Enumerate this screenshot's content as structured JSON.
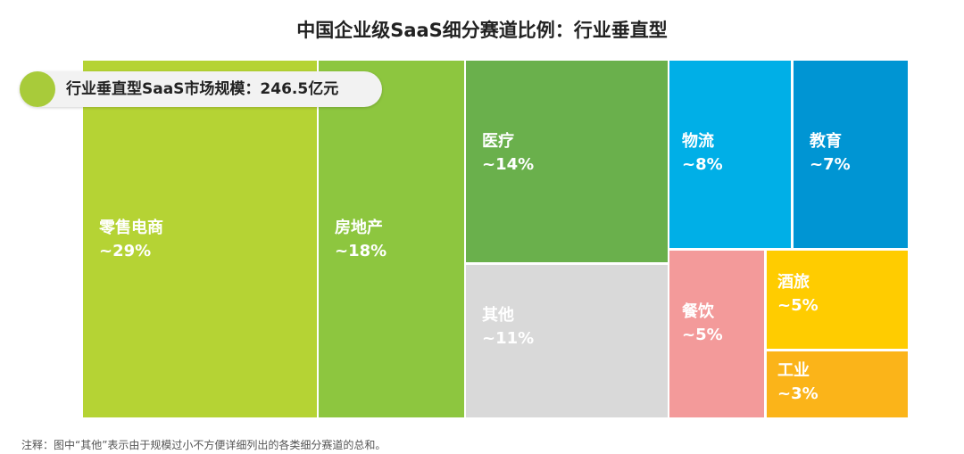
{
  "chart_data": {
    "type": "treemap",
    "title": "中国企业级SaaS细分赛道比例：行业垂直型",
    "items": [
      {
        "name": "零售电商",
        "label": "~29%",
        "value": 29,
        "color": "#b5d334"
      },
      {
        "name": "房地产",
        "label": "~18%",
        "value": 18,
        "color": "#8dc63f"
      },
      {
        "name": "医疗",
        "label": "~14%",
        "value": 14,
        "color": "#6ab04c"
      },
      {
        "name": "其他",
        "label": "~11%",
        "value": 11,
        "color": "#d9d9d9"
      },
      {
        "name": "物流",
        "label": "~8%",
        "value": 8,
        "color": "#00afe7"
      },
      {
        "name": "教育",
        "label": "~7%",
        "value": 7,
        "color": "#0095d3"
      },
      {
        "name": "餐饮",
        "label": "~5%",
        "value": 5,
        "color": "#f39a9a"
      },
      {
        "name": "酒旅",
        "label": "~5%",
        "value": 5,
        "color": "#ffcc00"
      },
      {
        "name": "工业",
        "label": "~3%",
        "value": 3,
        "color": "#fbb419"
      }
    ]
  },
  "badge": {
    "text": "行业垂直型SaaS市场规模：246.5亿元",
    "color": "#a8cb3a"
  },
  "footnote": "注释：图中“其他”表示由于规模过小不方便详细列出的各类细分赛道的总和。"
}
